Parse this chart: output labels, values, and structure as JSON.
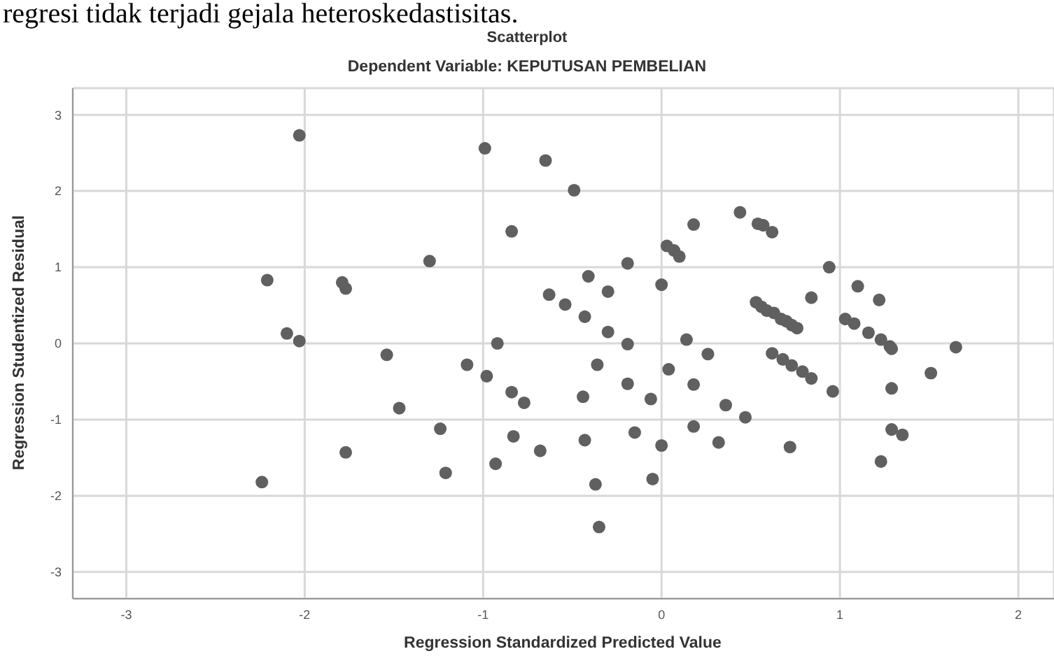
{
  "chart_data": {
    "type": "scatter",
    "title": "Scatterplot",
    "subtitle": "Dependent Variable: KEPUTUSAN PEMBELIAN",
    "xlabel": "Regression Standardized Predicted Value",
    "ylabel": "Regression Studentized Residual",
    "annotations": [
      "regresi tidak terjadi gejala heteroskedastisitas."
    ],
    "xlim": [
      -3.3,
      2.2
    ],
    "xticks": [
      -3,
      -2,
      -1,
      0,
      1,
      2
    ],
    "ylim": [
      -3.35,
      3.35
    ],
    "yticks": [
      -3,
      -2,
      -1,
      0,
      1,
      2,
      3
    ],
    "grid": true,
    "legend": false,
    "marker": "circle",
    "series": [
      {
        "color": "#606060",
        "x": [
          -2.03,
          -0.99,
          -0.84,
          -1.3,
          -2.21,
          -1.79,
          -1.77,
          -2.1,
          -2.03,
          -0.92,
          -1.54,
          -1.09,
          -0.98,
          -0.84,
          -0.77,
          -1.47,
          -1.24,
          -0.83,
          -1.77,
          -0.93,
          -1.21,
          -2.24,
          -0.65,
          -0.49,
          0.44,
          0.18,
          0.54,
          0.57,
          0.62,
          0.03,
          0.07,
          0.1,
          -0.19,
          0.94,
          -0.41,
          0.0,
          -0.63,
          -0.3,
          1.1,
          1.22,
          0.84,
          -0.54,
          -0.43,
          0.53,
          0.56,
          0.59,
          0.63,
          0.67,
          0.7,
          0.73,
          0.76,
          1.03,
          1.08,
          1.16,
          1.23,
          1.28,
          1.29,
          -0.3,
          -0.19,
          0.14,
          1.65,
          0.26,
          0.62,
          0.68,
          0.73,
          0.79,
          0.84,
          -0.36,
          0.04,
          1.51,
          -0.19,
          0.18,
          0.96,
          1.29,
          -0.44,
          -0.06,
          0.36,
          0.47,
          0.18,
          1.29,
          1.35,
          -0.15,
          -0.43,
          0.32,
          0.0,
          0.72,
          -0.68,
          1.23,
          -0.37,
          -0.05,
          -0.35
        ],
        "values": [
          2.73,
          2.56,
          1.47,
          1.08,
          0.83,
          0.8,
          0.72,
          0.13,
          0.03,
          0.0,
          -0.15,
          -0.28,
          -0.43,
          -0.64,
          -0.78,
          -0.85,
          -1.12,
          -1.22,
          -1.43,
          -1.58,
          -1.7,
          -1.82,
          2.4,
          2.01,
          1.72,
          1.56,
          1.57,
          1.55,
          1.46,
          1.28,
          1.22,
          1.14,
          1.05,
          1.0,
          0.88,
          0.77,
          0.64,
          0.68,
          0.75,
          0.57,
          0.6,
          0.51,
          0.35,
          0.54,
          0.48,
          0.43,
          0.4,
          0.32,
          0.29,
          0.24,
          0.2,
          0.32,
          0.26,
          0.14,
          0.05,
          -0.04,
          -0.07,
          0.15,
          -0.01,
          0.05,
          -0.05,
          -0.14,
          -0.13,
          -0.21,
          -0.29,
          -0.37,
          -0.46,
          -0.28,
          -0.34,
          -0.39,
          -0.53,
          -0.54,
          -0.63,
          -0.59,
          -0.7,
          -0.73,
          -0.81,
          -0.97,
          -1.09,
          -1.13,
          -1.2,
          -1.17,
          -1.27,
          -1.3,
          -1.34,
          -1.36,
          -1.41,
          -1.55,
          -1.85,
          -1.78,
          -2.41
        ]
      }
    ]
  }
}
